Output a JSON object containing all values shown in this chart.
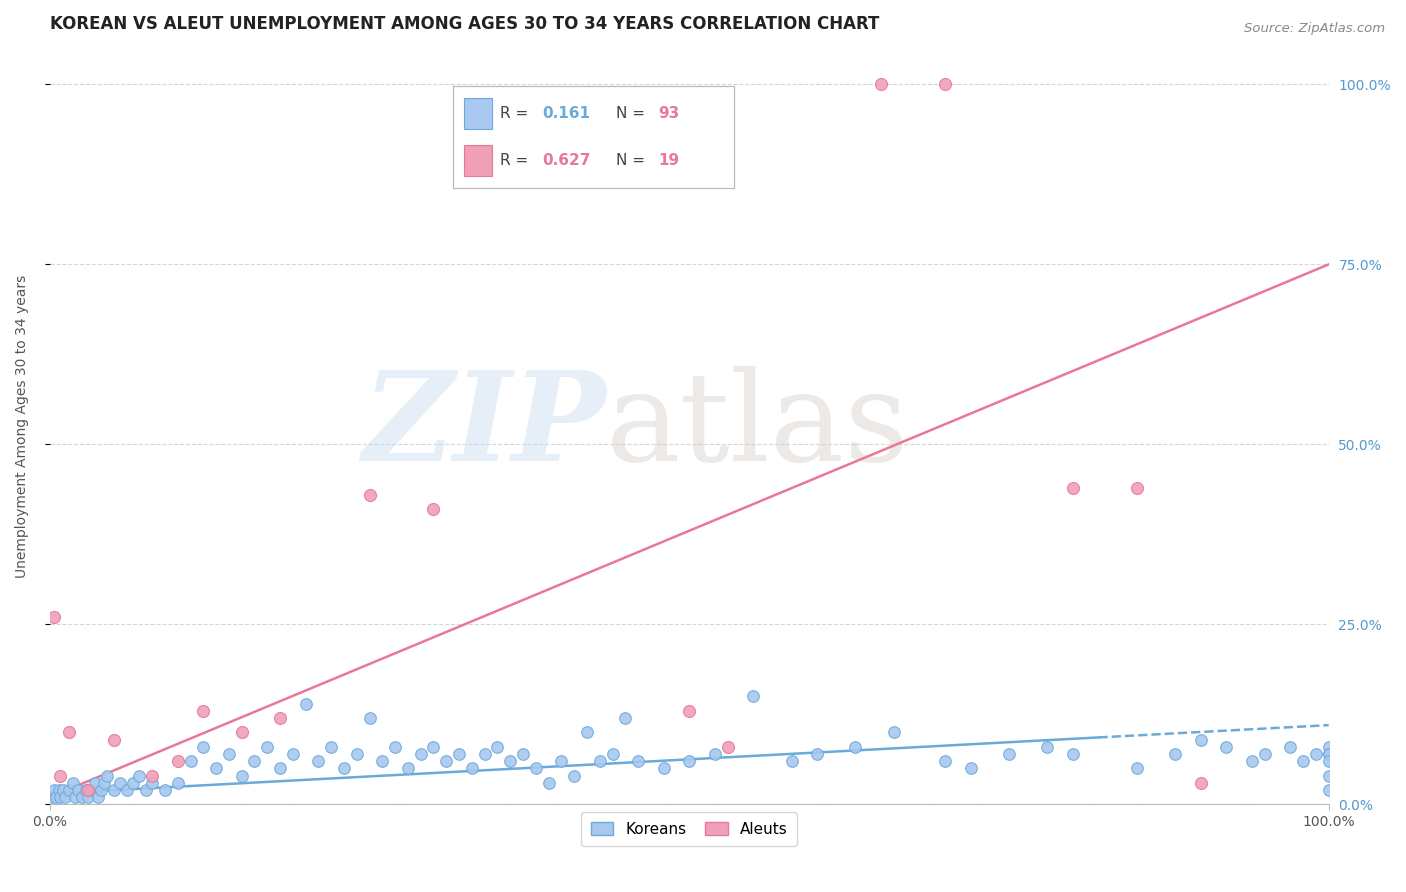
{
  "title": "KOREAN VS ALEUT UNEMPLOYMENT AMONG AGES 30 TO 34 YEARS CORRELATION CHART",
  "source": "Source: ZipAtlas.com",
  "ylabel": "Unemployment Among Ages 30 to 34 years",
  "ytick_labels": [
    "0.0%",
    "25.0%",
    "50.0%",
    "75.0%",
    "100.0%"
  ],
  "ytick_values": [
    0,
    25,
    50,
    75,
    100
  ],
  "xlim": [
    0,
    100
  ],
  "ylim": [
    0,
    105
  ],
  "korean_R": 0.161,
  "korean_N": 93,
  "aleut_R": 0.627,
  "aleut_N": 19,
  "korean_color": "#a8c8f0",
  "aleut_color": "#f0a0b8",
  "korean_line_color": "#6aaad8",
  "aleut_line_color": "#e87898",
  "background_color": "#ffffff",
  "grid_color": "#cccccc",
  "title_fontsize": 12,
  "axis_label_fontsize": 10,
  "tick_fontsize": 10,
  "korean_scatter_x": [
    0.2,
    0.3,
    0.5,
    0.7,
    0.8,
    1.0,
    1.2,
    1.5,
    1.8,
    2.0,
    2.2,
    2.5,
    2.8,
    3.0,
    3.2,
    3.5,
    3.8,
    4.0,
    4.2,
    4.5,
    5.0,
    5.5,
    6.0,
    6.5,
    7.0,
    7.5,
    8.0,
    9.0,
    10.0,
    11.0,
    12.0,
    13.0,
    14.0,
    15.0,
    16.0,
    17.0,
    18.0,
    19.0,
    20.0,
    21.0,
    22.0,
    23.0,
    24.0,
    25.0,
    26.0,
    27.0,
    28.0,
    29.0,
    30.0,
    31.0,
    32.0,
    33.0,
    34.0,
    35.0,
    36.0,
    37.0,
    38.0,
    39.0,
    40.0,
    41.0,
    42.0,
    43.0,
    44.0,
    45.0,
    46.0,
    48.0,
    50.0,
    52.0,
    55.0,
    58.0,
    60.0,
    63.0,
    66.0,
    70.0,
    72.0,
    75.0,
    78.0,
    80.0,
    85.0,
    88.0,
    90.0,
    92.0,
    94.0,
    95.0,
    97.0,
    98.0,
    99.0,
    100.0,
    100.0,
    100.0,
    100.0,
    100.0,
    100.0
  ],
  "korean_scatter_y": [
    1,
    2,
    1,
    2,
    1,
    2,
    1,
    2,
    3,
    1,
    2,
    1,
    2,
    1,
    2,
    3,
    1,
    2,
    3,
    4,
    2,
    3,
    2,
    3,
    4,
    2,
    3,
    2,
    3,
    6,
    8,
    5,
    7,
    4,
    6,
    8,
    5,
    7,
    14,
    6,
    8,
    5,
    7,
    12,
    6,
    8,
    5,
    7,
    8,
    6,
    7,
    5,
    7,
    8,
    6,
    7,
    5,
    3,
    6,
    4,
    10,
    6,
    7,
    12,
    6,
    5,
    6,
    7,
    15,
    6,
    7,
    8,
    10,
    6,
    5,
    7,
    8,
    7,
    5,
    7,
    9,
    8,
    6,
    7,
    8,
    6,
    7,
    8,
    4,
    2,
    7,
    7,
    6
  ],
  "aleut_scatter_x": [
    0.3,
    0.8,
    1.5,
    3.0,
    5.0,
    8.0,
    10.0,
    12.0,
    15.0,
    18.0,
    25.0,
    30.0,
    50.0,
    53.0,
    65.0,
    70.0,
    80.0,
    85.0,
    90.0
  ],
  "aleut_scatter_y": [
    26,
    4,
    10,
    2,
    9,
    4,
    6,
    13,
    10,
    12,
    43,
    41,
    13,
    8,
    100,
    100,
    44,
    44,
    3
  ],
  "korean_trend_start_x": 0,
  "korean_trend_start_y": 1.5,
  "korean_trend_end_x": 100,
  "korean_trend_end_y": 11,
  "korean_solid_end_x": 82,
  "aleut_trend_start_x": 0,
  "aleut_trend_start_y": 1,
  "aleut_trend_end_x": 100,
  "aleut_trend_end_y": 75
}
